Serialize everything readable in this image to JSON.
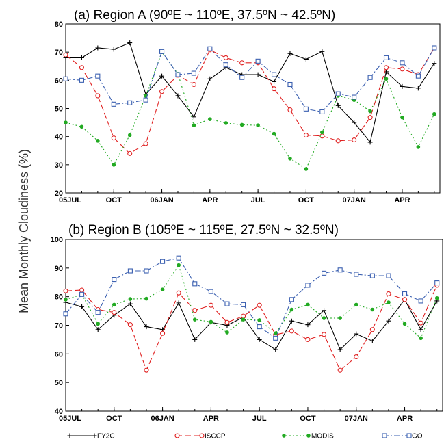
{
  "figure": {
    "ylabel": "Mean Monthly Cloudiness (%)"
  },
  "legend": [
    {
      "name": "FY2C",
      "color": "#000000",
      "marker": "plus",
      "dash": "solid"
    },
    {
      "name": "ISCCP",
      "color": "#e02020",
      "marker": "circle",
      "dash": "dash"
    },
    {
      "name": "MODIS",
      "color": "#22aa22",
      "marker": "dot",
      "dash": "dot"
    },
    {
      "name": "GO",
      "color": "#3a5fb0",
      "marker": "square",
      "dash": "dashdot"
    }
  ],
  "chart_data": [
    {
      "type": "line",
      "title": "(a) Region A (90ºE ~ 110ºE, 37.5ºN ~ 42.5ºN)",
      "xlabel": "",
      "ylabel": "Mean Monthly Cloudiness (%)",
      "ylim": [
        20,
        80
      ],
      "yticks": [
        20,
        30,
        40,
        50,
        60,
        70,
        80
      ],
      "x_months": [
        "2005-07",
        "2005-08",
        "2005-09",
        "2005-10",
        "2005-11",
        "2005-12",
        "2006-01",
        "2006-02",
        "2006-03",
        "2006-04",
        "2006-05",
        "2006-06",
        "2006-07",
        "2006-08",
        "2006-09",
        "2006-10",
        "2006-11",
        "2006-12",
        "2007-01",
        "2007-02",
        "2007-03",
        "2007-04",
        "2007-05",
        "2007-06"
      ],
      "xticks": [
        {
          "month": "2005-07",
          "label": "05JUL"
        },
        {
          "month": "2005-10",
          "label": "OCT"
        },
        {
          "month": "2006-01",
          "label": "06JAN"
        },
        {
          "month": "2006-04",
          "label": "APR"
        },
        {
          "month": "2006-07",
          "label": "JUL"
        },
        {
          "month": "2006-10",
          "label": "OCT"
        },
        {
          "month": "2007-01",
          "label": "07JAN"
        },
        {
          "month": "2007-04",
          "label": "APR"
        }
      ],
      "series": [
        {
          "name": "FY2C",
          "values": [
            68,
            68,
            71.5,
            71,
            73.3,
            55,
            61.5,
            54.5,
            47,
            60.5,
            64.5,
            62,
            62,
            59.5,
            69.5,
            67.5,
            70.2,
            51,
            45,
            38,
            63,
            57.8,
            57.2,
            66
          ]
        },
        {
          "name": "ISCCP",
          "values": [
            69,
            64.5,
            54.5,
            39.5,
            34,
            37.5,
            56,
            61.8,
            58.5,
            70.8,
            68,
            66.2,
            66.2,
            57,
            49.5,
            40.5,
            40.2,
            38.5,
            38.8,
            46.8,
            64.5,
            64,
            62,
            71.5
          ]
        },
        {
          "name": "MODIS",
          "values": [
            45,
            43.5,
            38.5,
            30,
            40.5,
            54.5,
            70,
            62.3,
            44,
            46.2,
            44.8,
            44.2,
            44,
            41,
            32.2,
            28.5,
            41.5,
            54.5,
            53,
            49,
            60.5,
            46.8,
            36.3,
            48
          ]
        },
        {
          "name": "GO",
          "values": [
            60.5,
            60,
            61.5,
            51.5,
            52,
            53,
            70.2,
            62,
            62.5,
            71.2,
            65.5,
            61,
            66.8,
            62,
            58.5,
            49.8,
            48.8,
            55.2,
            54,
            61,
            68,
            66.2,
            61.5,
            71.5
          ]
        }
      ]
    },
    {
      "type": "line",
      "title": "(b) Region B (105ºE ~ 115ºE, 27.5ºN ~ 32.5ºN)",
      "xlabel": "",
      "ylabel": "Mean Monthly Cloudiness (%)",
      "ylim": [
        40,
        100
      ],
      "yticks": [
        40,
        50,
        60,
        70,
        80,
        90,
        100
      ],
      "x_months": [
        "2005-07",
        "2005-08",
        "2005-09",
        "2005-10",
        "2005-11",
        "2005-12",
        "2006-01",
        "2006-02",
        "2006-03",
        "2006-04",
        "2006-05",
        "2006-06",
        "2006-07",
        "2006-08",
        "2006-09",
        "2006-10",
        "2006-11",
        "2006-12",
        "2007-01",
        "2007-02",
        "2007-03",
        "2007-04",
        "2007-05",
        "2007-06"
      ],
      "xticks": [
        {
          "month": "2005-07",
          "label": "05JUL"
        },
        {
          "month": "2005-10",
          "label": "OCT"
        },
        {
          "month": "2006-01",
          "label": "06JAN"
        },
        {
          "month": "2006-04",
          "label": "APR"
        },
        {
          "month": "2006-07",
          "label": "JUL"
        },
        {
          "month": "2006-10",
          "label": "OCT"
        },
        {
          "month": "2007-01",
          "label": "07JAN"
        },
        {
          "month": "2007-04",
          "label": "APR"
        }
      ],
      "series": [
        {
          "name": "FY2C",
          "values": [
            78,
            76.5,
            68.5,
            73.5,
            77.5,
            69.5,
            68.5,
            77.8,
            65,
            71,
            70,
            72.8,
            65,
            61.5,
            71.5,
            70.2,
            75.2,
            61.5,
            67,
            64.5,
            71.5,
            79,
            68.5,
            78.5
          ]
        },
        {
          "name": "ISCCP",
          "values": [
            82,
            82.3,
            75.5,
            74.5,
            70.2,
            54.3,
            67.2,
            81.3,
            75.2,
            77,
            71,
            73.2,
            77,
            66.7,
            68,
            65,
            66.8,
            54.3,
            59,
            68.5,
            81,
            79,
            70.8,
            84
          ]
        },
        {
          "name": "MODIS",
          "values": [
            79,
            80.8,
            70.5,
            77.2,
            79.2,
            79.3,
            82.5,
            91,
            72,
            71.2,
            67.5,
            72,
            71.8,
            67.2,
            75.5,
            77.2,
            72.5,
            72.5,
            77.2,
            75.5,
            78,
            70.5,
            65.5,
            79.5
          ]
        },
        {
          "name": "GO",
          "values": [
            74,
            80.8,
            74.5,
            86,
            89,
            89,
            92.3,
            93.5,
            84.5,
            81.8,
            77.5,
            77.2,
            69.5,
            65.5,
            79,
            84,
            88.2,
            89.3,
            87.8,
            87.3,
            87.3,
            81,
            78.5,
            84.8
          ]
        }
      ]
    }
  ]
}
